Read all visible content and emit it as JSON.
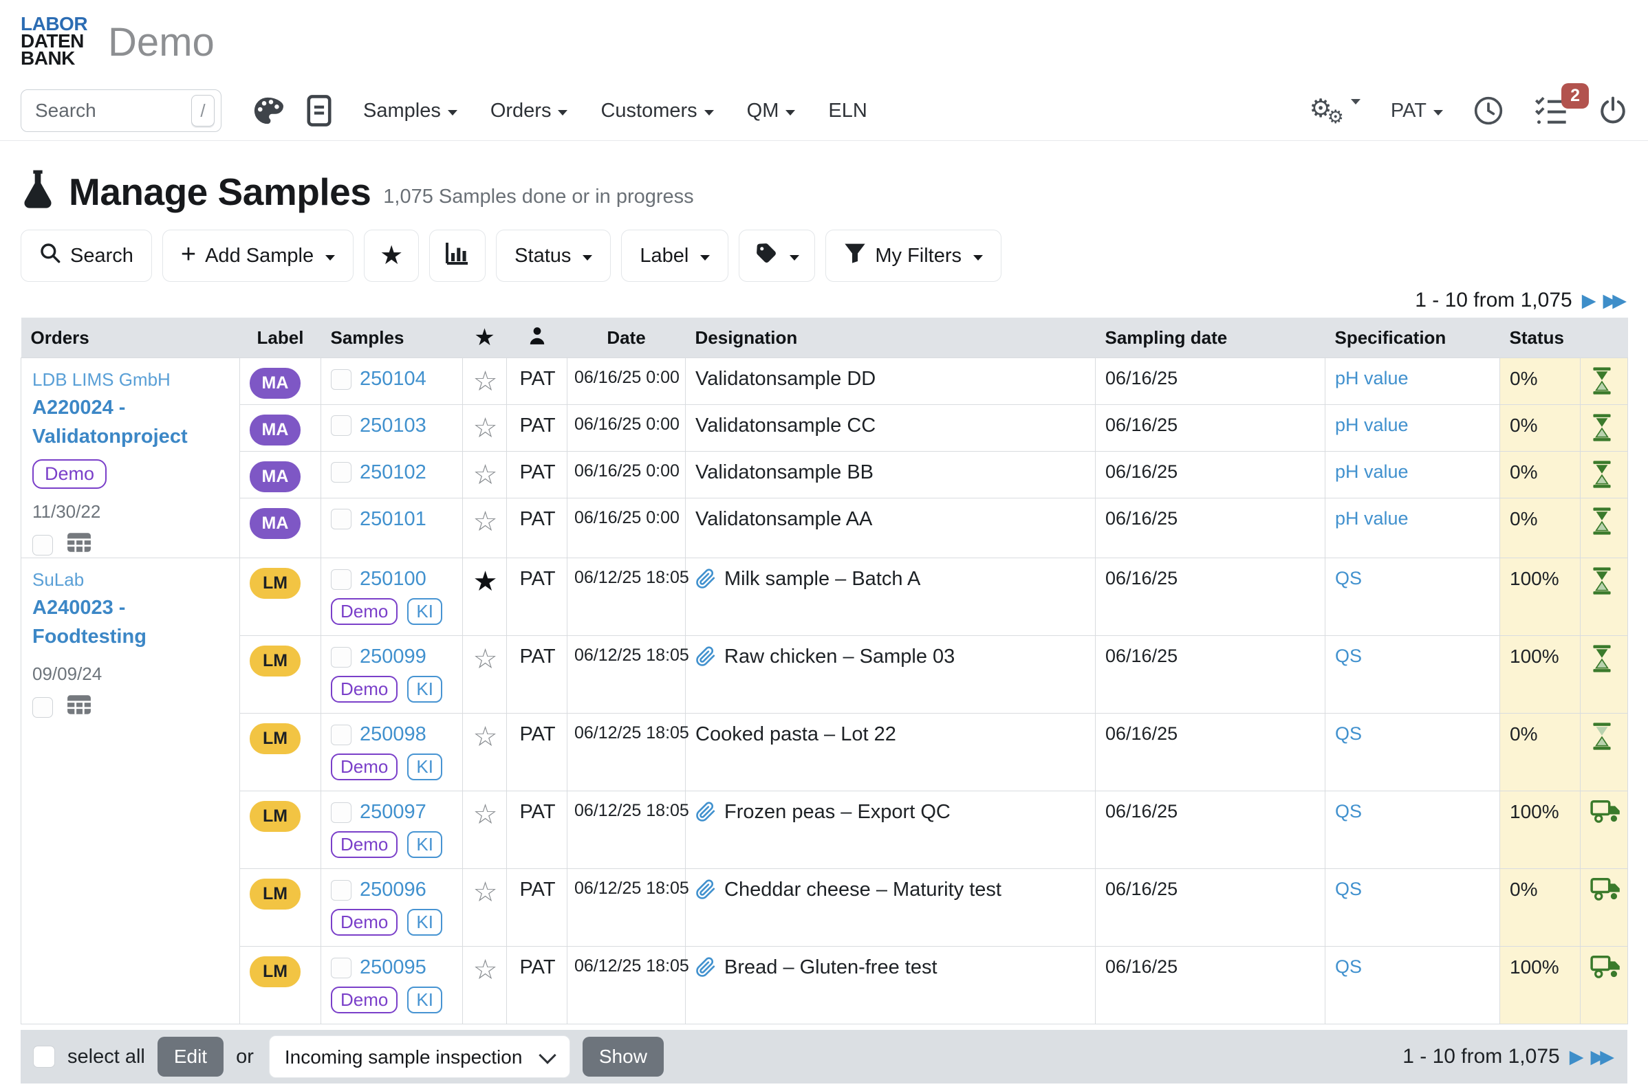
{
  "header": {
    "logo": {
      "line1": "LABOR",
      "line2": "DATEN",
      "line3": "BANK"
    },
    "app_title": "Demo"
  },
  "nav": {
    "search_placeholder": "Search",
    "search_shortcut": "/",
    "icons": [
      "palette-icon",
      "document-icon"
    ],
    "menus": [
      {
        "label": "Samples",
        "caret": true
      },
      {
        "label": "Orders",
        "caret": true
      },
      {
        "label": "Customers",
        "caret": true
      },
      {
        "label": "QM",
        "caret": true
      },
      {
        "label": "ELN",
        "caret": false
      }
    ],
    "right_icons": [
      "gears-icon",
      "clock-icon",
      "tasklist-icon",
      "power-icon"
    ],
    "user_label": "PAT",
    "notification_count": "2"
  },
  "page": {
    "title": "Manage Samples",
    "subtitle": "1,075 Samples done or in progress",
    "title_icon": "flask-icon"
  },
  "toolbar": {
    "search_label": "Search",
    "add_sample_label": "Add Sample",
    "status_label": "Status",
    "label_label": "Label",
    "my_filters_label": "My Filters",
    "icon_buttons": [
      "favorite-star-icon",
      "bar-chart-icon",
      "tag-icon",
      "funnel-icon"
    ]
  },
  "pagination": {
    "range_label": "1 - 10 from 1,075"
  },
  "table": {
    "headers": [
      {
        "label": "Orders"
      },
      {
        "label": "Label"
      },
      {
        "label": "Samples"
      },
      {
        "icon": "star"
      },
      {
        "icon": "user"
      },
      {
        "label": "Date"
      },
      {
        "label": "Designation"
      },
      {
        "label": "Sampling date"
      },
      {
        "label": "Specification"
      },
      {
        "label": "Status"
      },
      {
        "label": ""
      }
    ],
    "groups": [
      {
        "customer": "LDB LIMS GmbH",
        "order": "A220024 - Validatonproject",
        "badge": "Demo",
        "date": "11/30/22"
      },
      {
        "customer": "SuLab",
        "order": "A240023 - Foodtesting",
        "badge": null,
        "date": "09/09/24"
      }
    ],
    "rows": [
      {
        "group": 0,
        "label": "MA",
        "id": "250104",
        "badges": [],
        "starred": false,
        "user": "PAT",
        "date": "06/16/25 0:00",
        "designation": "Validatonsample DD",
        "attachment": false,
        "sampling_date": "06/16/25",
        "specification": "pH value",
        "progress": "0%",
        "status_icon": "hourglass"
      },
      {
        "group": 0,
        "label": "MA",
        "id": "250103",
        "badges": [],
        "starred": false,
        "user": "PAT",
        "date": "06/16/25 0:00",
        "designation": "Validatonsample CC",
        "attachment": false,
        "sampling_date": "06/16/25",
        "specification": "pH value",
        "progress": "0%",
        "status_icon": "hourglass"
      },
      {
        "group": 0,
        "label": "MA",
        "id": "250102",
        "badges": [],
        "starred": false,
        "user": "PAT",
        "date": "06/16/25 0:00",
        "designation": "Validatonsample BB",
        "attachment": false,
        "sampling_date": "06/16/25",
        "specification": "pH value",
        "progress": "0%",
        "status_icon": "hourglass"
      },
      {
        "group": 0,
        "label": "MA",
        "id": "250101",
        "badges": [],
        "starred": false,
        "user": "PAT",
        "date": "06/16/25 0:00",
        "designation": "Validatonsample AA",
        "attachment": false,
        "sampling_date": "06/16/25",
        "specification": "pH value",
        "progress": "0%",
        "status_icon": "hourglass"
      },
      {
        "group": 1,
        "label": "LM",
        "id": "250100",
        "badges": [
          "Demo",
          "KI"
        ],
        "starred": true,
        "user": "PAT",
        "date": "06/12/25 18:05",
        "designation": "Milk sample – Batch A",
        "attachment": true,
        "sampling_date": "06/16/25",
        "specification": "QS",
        "progress": "100%",
        "status_icon": "hourglass"
      },
      {
        "group": 1,
        "label": "LM",
        "id": "250099",
        "badges": [
          "Demo",
          "KI"
        ],
        "starred": false,
        "user": "PAT",
        "date": "06/12/25 18:05",
        "designation": "Raw chicken – Sample 03",
        "attachment": true,
        "sampling_date": "06/16/25",
        "specification": "QS",
        "progress": "100%",
        "status_icon": "hourglass"
      },
      {
        "group": 1,
        "label": "LM",
        "id": "250098",
        "badges": [
          "Demo",
          "KI"
        ],
        "starred": false,
        "user": "PAT",
        "date": "06/12/25 18:05",
        "designation": "Cooked pasta – Lot 22",
        "attachment": false,
        "sampling_date": "06/16/25",
        "specification": "QS",
        "progress": "0%",
        "status_icon": "hourglass-light"
      },
      {
        "group": 1,
        "label": "LM",
        "id": "250097",
        "badges": [
          "Demo",
          "KI"
        ],
        "starred": false,
        "user": "PAT",
        "date": "06/12/25 18:05",
        "designation": "Frozen peas – Export QC",
        "attachment": true,
        "sampling_date": "06/16/25",
        "specification": "QS",
        "progress": "100%",
        "status_icon": "truck"
      },
      {
        "group": 1,
        "label": "LM",
        "id": "250096",
        "badges": [
          "Demo",
          "KI"
        ],
        "starred": false,
        "user": "PAT",
        "date": "06/12/25 18:05",
        "designation": "Cheddar cheese – Maturity test",
        "attachment": true,
        "sampling_date": "06/16/25",
        "specification": "QS",
        "progress": "0%",
        "status_icon": "truck"
      },
      {
        "group": 1,
        "label": "LM",
        "id": "250095",
        "badges": [
          "Demo",
          "KI"
        ],
        "starred": false,
        "user": "PAT",
        "date": "06/12/25 18:05",
        "designation": "Bread – Gluten-free test",
        "attachment": true,
        "sampling_date": "06/16/25",
        "specification": "QS",
        "progress": "100%",
        "status_icon": "truck"
      }
    ]
  },
  "footer": {
    "select_all_label": "select all",
    "edit_label": "Edit",
    "or_label": "or",
    "action_selected": "Incoming sample inspection",
    "show_label": "Show",
    "range_label": "1 - 10 from 1,075"
  },
  "colors": {
    "accent_blue": "#4191ce",
    "label_ma": "#7e57c5",
    "label_lm": "#f2c443",
    "badge_purple": "#7a3fc9",
    "status_bg": "#fcf4d3",
    "status_icon_green": "#3a7a2b",
    "notification_red": "#b2534e"
  }
}
